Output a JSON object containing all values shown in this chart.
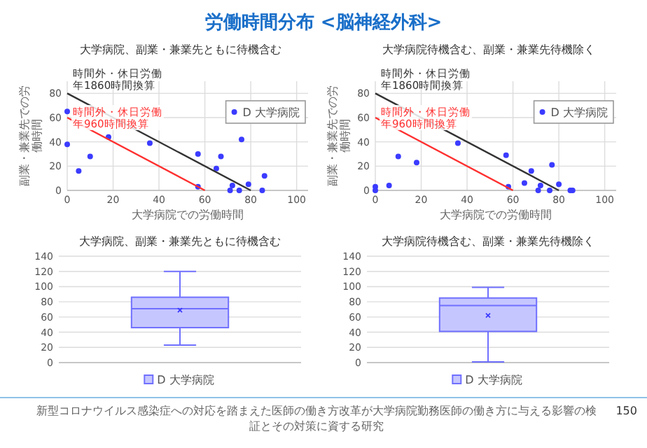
{
  "chart_data": [
    {
      "type": "scatter",
      "title": "大学病院、副業・兼業先ともに待機含む",
      "xlabel": "大学病院での労働時間",
      "ylabel": "副業・兼業先での労働時間",
      "xlim": [
        0,
        105
      ],
      "xticks": [
        0,
        20,
        40,
        60,
        80,
        100
      ],
      "ylim": [
        0,
        90
      ],
      "yticks": [
        0,
        20,
        40,
        60,
        80
      ],
      "grid": true,
      "legend": "top right",
      "marker": "circle",
      "series": [
        {
          "name": "D 大学病院",
          "type": "scatter",
          "color": "#3b3bff",
          "x": [
            0,
            0,
            5,
            10,
            18,
            36,
            57,
            57,
            65,
            67,
            71,
            72,
            75,
            76,
            79,
            85,
            86
          ],
          "values": [
            65,
            38,
            16,
            28,
            44,
            39,
            30,
            3,
            18,
            28,
            0,
            4,
            0,
            42,
            5,
            0,
            12
          ]
        },
        {
          "name": "時間外・休日労働年1860時間換算",
          "type": "line",
          "color": "#333333",
          "marker": "none",
          "line_style": "solid",
          "x": [
            0,
            80
          ],
          "values": [
            80,
            0
          ]
        },
        {
          "name": "時間外・休日労働年960時間換算",
          "type": "line",
          "color": "#ff3030",
          "marker": "none",
          "line_style": "solid",
          "x": [
            0,
            60
          ],
          "values": [
            60,
            0
          ]
        }
      ],
      "annotations": [
        "労働時間分布 <脳神経外科>"
      ]
    },
    {
      "type": "scatter",
      "title": "大学病院待機含む、副業・兼業先待機除く",
      "xlabel": "大学病院での労働時間",
      "ylabel": "副業・兼業先での労働時間",
      "xlim": [
        0,
        105
      ],
      "xticks": [
        0,
        20,
        40,
        60,
        80,
        100
      ],
      "ylim": [
        0,
        90
      ],
      "yticks": [
        0,
        20,
        40,
        60,
        80
      ],
      "grid": true,
      "legend": "top right",
      "marker": "circle",
      "series": [
        {
          "name": "D 大学病院",
          "type": "scatter",
          "color": "#3b3bff",
          "x": [
            0,
            0,
            6,
            10,
            18,
            36,
            57,
            58,
            65,
            68,
            71,
            72,
            76,
            77,
            80,
            85,
            86
          ],
          "values": [
            3,
            0,
            4,
            28,
            23,
            39,
            29,
            3,
            6,
            16,
            0,
            4,
            0,
            21,
            5,
            0,
            0
          ]
        },
        {
          "name": "時間外・休日労働年1860時間換算",
          "type": "line",
          "color": "#333333",
          "marker": "none",
          "line_style": "solid",
          "x": [
            0,
            80
          ],
          "values": [
            80,
            0
          ]
        },
        {
          "name": "時間外・休日労働年960時間換算",
          "type": "line",
          "color": "#ff3030",
          "marker": "none",
          "line_style": "solid",
          "x": [
            0,
            60
          ],
          "values": [
            60,
            0
          ]
        }
      ]
    },
    {
      "type": "box",
      "title": "大学病院、副業・兼業先ともに待機含む",
      "categories": [
        null
      ],
      "ylim": [
        0,
        140
      ],
      "yticks": [
        0,
        20,
        40,
        60,
        80,
        100,
        120,
        140
      ],
      "grid": "y",
      "legend": "bottom",
      "series": [
        {
          "name": "D 大学病院",
          "color": "#7070ff",
          "boxes": [
            {
              "low": 23,
              "q1": 46,
              "median": 71,
              "q3": 86,
              "high": 120,
              "mean": 69
            }
          ]
        }
      ]
    },
    {
      "type": "box",
      "title": "大学病院待機含む、副業・兼業先待機除く",
      "categories": [
        null
      ],
      "ylim": [
        0,
        140
      ],
      "yticks": [
        0,
        20,
        40,
        60,
        80,
        100,
        120,
        140
      ],
      "grid": "y",
      "legend": "bottom",
      "series": [
        {
          "name": "D 大学病院",
          "color": "#7070ff",
          "boxes": [
            {
              "low": 1,
              "q1": 41,
              "median": 75,
              "q3": 85,
              "high": 99,
              "mean": 62
            }
          ]
        }
      ],
      "annotations": [
        "新型コロナウイルス感染症への対応を踏まえた医師の働き方改革が大学病院勤務医師の働き方に与える影響の検証とその対策に資する研究",
        "150"
      ]
    }
  ]
}
